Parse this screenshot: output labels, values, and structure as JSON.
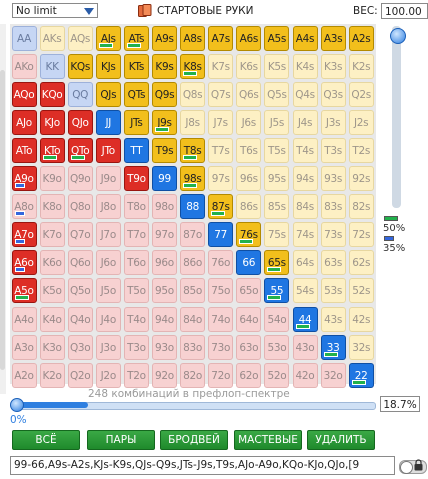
{
  "header": {
    "mode_value": "No limit",
    "title": "СТАРТОВЫЕ РУКИ",
    "weight_label": "ВЕС:",
    "weight_value": "100.00"
  },
  "ranks": [
    "A",
    "K",
    "Q",
    "J",
    "T",
    "9",
    "8",
    "7",
    "6",
    "5",
    "4",
    "3",
    "2"
  ],
  "grid": {
    "rows": [
      [
        "AA",
        "AKs",
        "AQs",
        "AJs",
        "ATs",
        "A9s",
        "A8s",
        "A7s",
        "A6s",
        "A5s",
        "A4s",
        "A3s",
        "A2s"
      ],
      [
        "AKo",
        "KK",
        "KQs",
        "KJs",
        "KTs",
        "K9s",
        "K8s",
        "K7s",
        "K6s",
        "K5s",
        "K4s",
        "K3s",
        "K2s"
      ],
      [
        "AQo",
        "KQo",
        "QQ",
        "QJs",
        "QTs",
        "Q9s",
        "Q8s",
        "Q7s",
        "Q6s",
        "Q5s",
        "Q4s",
        "Q3s",
        "Q2s"
      ],
      [
        "AJo",
        "KJo",
        "QJo",
        "JJ",
        "JTs",
        "J9s",
        "J8s",
        "J7s",
        "J6s",
        "J5s",
        "J4s",
        "J3s",
        "J2s"
      ],
      [
        "ATo",
        "KTo",
        "QTo",
        "JTo",
        "TT",
        "T9s",
        "T8s",
        "T7s",
        "T6s",
        "T5s",
        "T4s",
        "T3s",
        "T2s"
      ],
      [
        "A9o",
        "K9o",
        "Q9o",
        "J9o",
        "T9o",
        "99",
        "98s",
        "97s",
        "96s",
        "95s",
        "94s",
        "93s",
        "92s"
      ],
      [
        "A8o",
        "K8o",
        "Q8o",
        "J8o",
        "T8o",
        "98o",
        "88",
        "87s",
        "86s",
        "85s",
        "84s",
        "83s",
        "82s"
      ],
      [
        "A7o",
        "K7o",
        "Q7o",
        "J7o",
        "T7o",
        "97o",
        "87o",
        "77",
        "76s",
        "75s",
        "74s",
        "73s",
        "72s"
      ],
      [
        "A6o",
        "K6o",
        "Q6o",
        "J6o",
        "T6o",
        "96o",
        "86o",
        "76o",
        "66",
        "65s",
        "64s",
        "63s",
        "62s"
      ],
      [
        "A5o",
        "K5o",
        "Q5o",
        "J5o",
        "T5o",
        "95o",
        "85o",
        "75o",
        "65o",
        "55",
        "54s",
        "53s",
        "52s"
      ],
      [
        "A4o",
        "K4o",
        "Q4o",
        "J4o",
        "T4o",
        "94o",
        "84o",
        "74o",
        "64o",
        "54o",
        "44",
        "43s",
        "42s"
      ],
      [
        "A3o",
        "K3o",
        "Q3o",
        "J3o",
        "T3o",
        "93o",
        "83o",
        "73o",
        "63o",
        "53o",
        "43o",
        "33",
        "32s"
      ],
      [
        "A2o",
        "K2o",
        "Q2o",
        "J2o",
        "T2o",
        "92o",
        "82o",
        "72o",
        "62o",
        "52o",
        "42o",
        "32o",
        "22"
      ]
    ],
    "selected": [
      "AJs",
      "ATs",
      "A9s",
      "A8s",
      "A7s",
      "A6s",
      "A5s",
      "A4s",
      "A3s",
      "A2s",
      "KQs",
      "KJs",
      "KTs",
      "K9s",
      "K8s",
      "QJs",
      "QTs",
      "Q9s",
      "JJ",
      "JTs",
      "J9s",
      "TT",
      "T9s",
      "T8s",
      "99",
      "98s",
      "88",
      "87s",
      "77",
      "76s",
      "66",
      "65s",
      "55",
      "44",
      "33",
      "22",
      "AQo",
      "KQo",
      "AJo",
      "KJo",
      "QJo",
      "ATo",
      "KTo",
      "QTo",
      "JTo",
      "A9o",
      "T9o",
      "A7o",
      "A6o",
      "A5o"
    ],
    "weight_bars": {
      "full": [
        "AJs",
        "ATs",
        "K8s",
        "J9s",
        "T8s",
        "98s",
        "87s",
        "76s",
        "65s",
        "55",
        "44",
        "33",
        "22",
        "KTo",
        "QTo",
        "A5o"
      ],
      "partial": [
        "A9o",
        "A8o",
        "A7o",
        "A6o"
      ]
    }
  },
  "legend": {
    "high": "50%",
    "low": "35%"
  },
  "range": {
    "combos_text": "248 комбинаций в префлоп-спектре",
    "min_label": "0%",
    "percent_value": "18.7%",
    "percent_fraction": 0.187
  },
  "buttons": {
    "all": "ВСЁ",
    "pairs": "ПАРЫ",
    "broadway": "БРОДВЕЙ",
    "suited": "МАСТЕВЫЕ",
    "delete": "УДАЛИТЬ"
  },
  "range_text": "99-66,A9s-A2s,KJs-K9s,QJs-Q9s,JTs-J9s,T9s,AJo-A9o,KQo-KJo,QJo,[9"
}
